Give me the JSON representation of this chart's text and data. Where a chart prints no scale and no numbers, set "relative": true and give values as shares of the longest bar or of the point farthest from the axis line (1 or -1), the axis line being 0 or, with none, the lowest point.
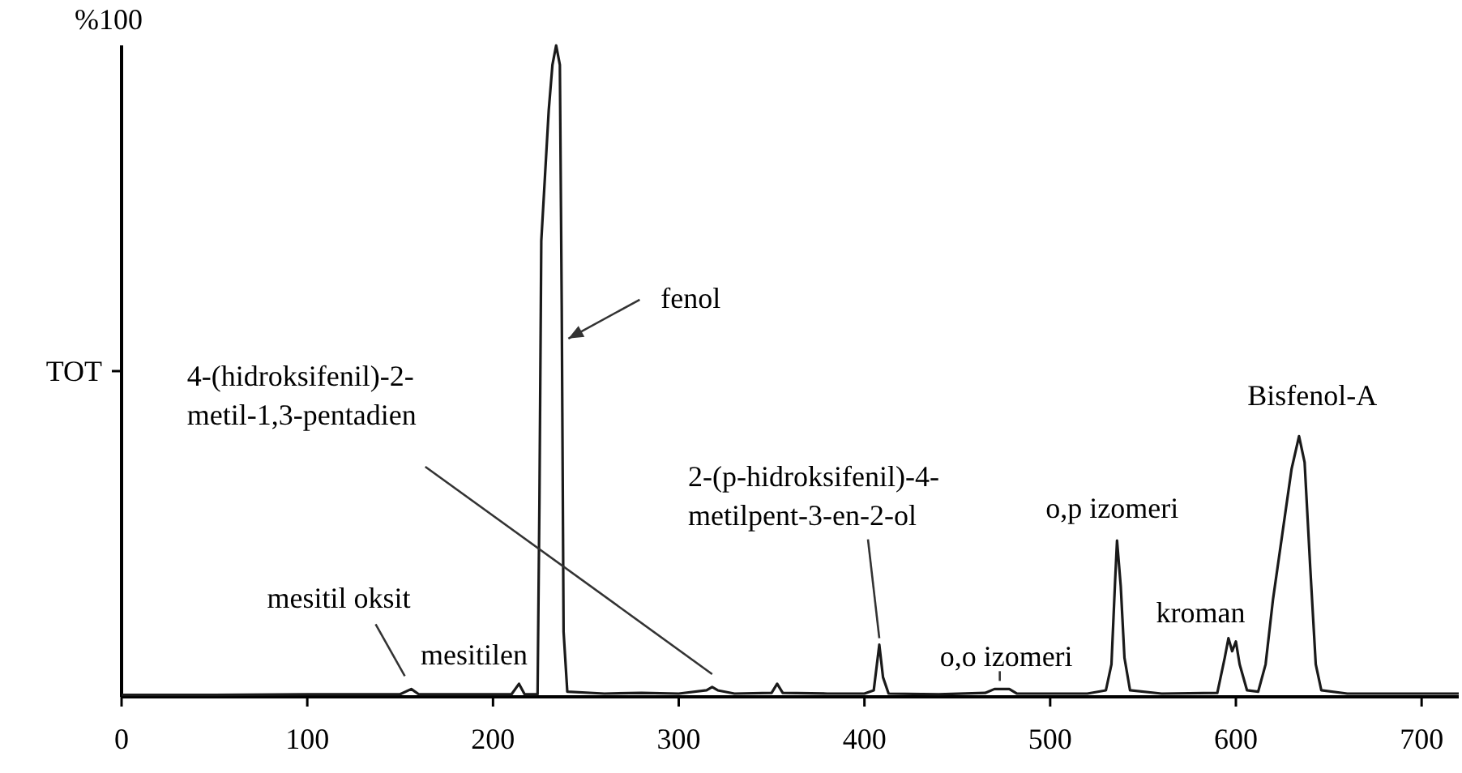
{
  "chart_data": {
    "type": "line",
    "relative": true,
    "ylabel": "TOT",
    "xlim": [
      0,
      720
    ],
    "xticks": [
      0,
      100,
      200,
      300,
      400,
      500,
      600,
      700
    ],
    "grid": false,
    "marker": "none",
    "line_style": "solid",
    "series": [
      {
        "color": "#1a1a1a",
        "x": [
          0,
          50,
          100,
          150,
          156,
          160,
          210,
          214,
          217,
          224,
          225,
          226,
          228,
          230,
          232,
          234,
          236,
          237,
          238,
          240,
          260,
          280,
          300,
          315,
          318,
          321,
          330,
          350,
          353,
          356,
          380,
          400,
          405,
          408,
          410,
          413,
          440,
          465,
          470,
          478,
          482,
          520,
          530,
          533,
          535,
          536,
          538,
          540,
          543,
          560,
          590,
          594,
          596,
          598,
          600,
          602,
          606,
          612,
          616,
          620,
          625,
          630,
          634,
          637,
          640,
          643,
          646,
          660,
          700,
          720
        ],
        "values": [
          0.003,
          0.003,
          0.004,
          0.004,
          0.012,
          0.004,
          0.004,
          0.02,
          0.004,
          0.004,
          0.3,
          0.7,
          0.8,
          0.9,
          0.97,
          1.0,
          0.97,
          0.6,
          0.1,
          0.008,
          0.005,
          0.006,
          0.005,
          0.01,
          0.015,
          0.01,
          0.005,
          0.006,
          0.02,
          0.006,
          0.005,
          0.005,
          0.01,
          0.08,
          0.03,
          0.005,
          0.004,
          0.006,
          0.012,
          0.012,
          0.005,
          0.005,
          0.01,
          0.05,
          0.18,
          0.24,
          0.17,
          0.06,
          0.01,
          0.005,
          0.006,
          0.06,
          0.09,
          0.07,
          0.085,
          0.05,
          0.01,
          0.008,
          0.05,
          0.15,
          0.25,
          0.35,
          0.4,
          0.36,
          0.2,
          0.05,
          0.01,
          0.005,
          0.005,
          0.005
        ]
      }
    ],
    "annotations": [
      "%100",
      {
        "text": "fenol",
        "x": 237.1,
        "y": 0.55
      },
      {
        "text": "4-(hidroksifenil)-2-\nmetil-1,3-pentadien",
        "x": 318,
        "y": 0.015
      },
      {
        "text": "mesitil oksit",
        "x": 156,
        "y": 0.012
      },
      {
        "text": "mesitilen",
        "x": 216,
        "y": 0.01
      },
      {
        "text": "2-(p-hidroksifenil)-4-\nmetilpent-3-en-2-ol",
        "x": 408,
        "y": 0.08
      },
      {
        "text": "o,o izomeri",
        "x": 472,
        "y": 0.012
      },
      {
        "text": "o,p izomeri",
        "x": 536,
        "y": 0.24
      },
      {
        "text": "kroman",
        "x": 598,
        "y": 0.09
      },
      {
        "text": "Bisfenol-A",
        "x": 635,
        "y": 0.4
      }
    ]
  }
}
